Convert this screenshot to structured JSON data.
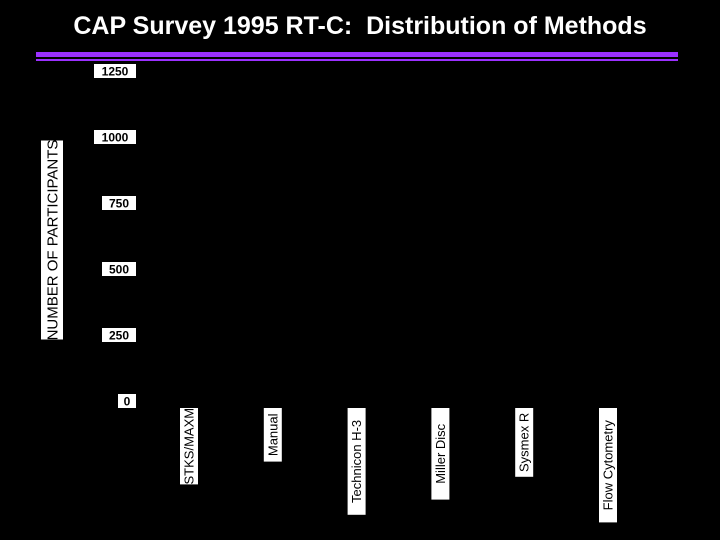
{
  "title": "CAP Survey 1995 RT-C:  Distribution of Methods",
  "colors": {
    "background": "#000000",
    "rule": "#9b30ff",
    "label_box": "#ffffff",
    "label_text": "#000000"
  },
  "chart_data": {
    "type": "bar",
    "title": "CAP Survey 1995 RT-C:  Distribution of Methods",
    "xlabel": "",
    "ylabel": "NUMBER OF PARTICIPANTS",
    "categories": [
      "STKS/MAXM",
      "Manual",
      "Technicon H-3",
      "Miller Disc",
      "Sysmex R",
      "Flow Cytometry"
    ],
    "series": [
      {
        "values": [
          null,
          null,
          null,
          null,
          null,
          null
        ]
      }
    ],
    "yticks": [
      0,
      250,
      500,
      750,
      1000,
      1250
    ],
    "ylim": [
      0,
      1250
    ],
    "grid": false,
    "legend": "none"
  }
}
